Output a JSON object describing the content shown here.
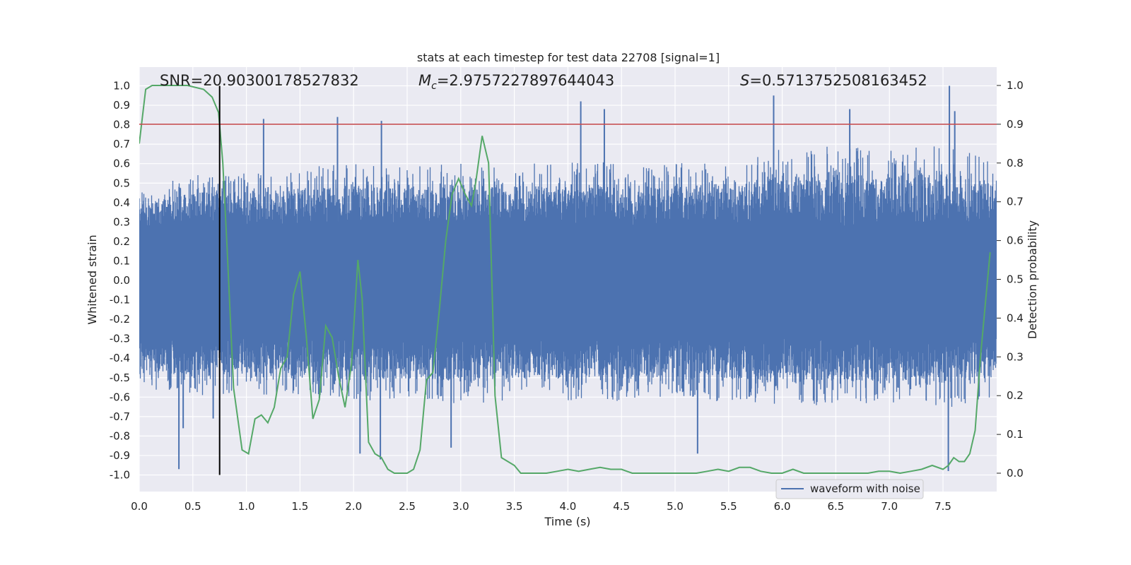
{
  "chart_data": {
    "type": "line",
    "title": "stats at each timestep for test data 22708 [signal=1]",
    "xlabel": "Time (s)",
    "ylabel": "Whitened strain",
    "ylabel_right": "Detection probability",
    "xlim": [
      0.0,
      8.0
    ],
    "ylim": [
      -1.1,
      1.1
    ],
    "ylim_right": [
      -0.05,
      1.05
    ],
    "x_ticks": [
      "0.0",
      "0.5",
      "1.0",
      "1.5",
      "2.0",
      "2.5",
      "3.0",
      "3.5",
      "4.0",
      "4.5",
      "5.0",
      "5.5",
      "6.0",
      "6.5",
      "7.0",
      "7.5"
    ],
    "y_ticks": [
      "1.0",
      "0.9",
      "0.8",
      "0.7",
      "0.6",
      "0.5",
      "0.4",
      "0.3",
      "0.2",
      "0.1",
      "0.0",
      "-0.1",
      "-0.2",
      "-0.3",
      "-0.4",
      "-0.5",
      "-0.6",
      "-0.7",
      "-0.8",
      "-0.9",
      "-1.0"
    ],
    "y_ticks_right": [
      "1.0",
      "0.9",
      "0.8",
      "0.7",
      "0.6",
      "0.5",
      "0.4",
      "0.3",
      "0.2",
      "0.1",
      "0.0"
    ],
    "grid": true,
    "legend_position": "bottom-right",
    "annotations": {
      "snr": "SNR=20.90300178527832",
      "mc_prefix": "M",
      "mc_sub": "c",
      "mc_value": "=2.9757227897644043",
      "s_prefix": "S",
      "s_value": "=0.5713752508163452"
    },
    "threshold_line": {
      "y_right": 0.9,
      "color": "#c44e52"
    },
    "marker_line": {
      "x": 0.75,
      "color": "#000000"
    },
    "series": [
      {
        "name": "waveform with noise",
        "axis": "left",
        "color": "#4c72b0",
        "envelope": {
          "x": [
            0.0,
            0.5,
            1.0,
            1.5,
            2.0,
            2.5,
            3.0,
            3.5,
            4.0,
            4.5,
            5.0,
            5.5,
            6.0,
            6.5,
            7.0,
            7.5,
            8.0
          ],
          "upper": [
            0.45,
            0.55,
            0.55,
            0.58,
            0.6,
            0.58,
            0.62,
            0.6,
            0.62,
            0.6,
            0.6,
            0.62,
            0.68,
            0.7,
            0.68,
            0.72,
            0.6
          ],
          "lower": [
            -0.55,
            -0.6,
            -0.58,
            -0.6,
            -0.62,
            -0.62,
            -0.64,
            -0.62,
            -0.62,
            -0.62,
            -0.6,
            -0.64,
            -0.66,
            -0.64,
            -0.64,
            -0.66,
            -0.6
          ]
        },
        "peaks": [
          {
            "x": 0.37,
            "y": -0.97
          },
          {
            "x": 0.41,
            "y": -0.76
          },
          {
            "x": 0.69,
            "y": -0.71
          },
          {
            "x": 1.16,
            "y": 0.83
          },
          {
            "x": 1.85,
            "y": 0.84
          },
          {
            "x": 2.06,
            "y": -0.89
          },
          {
            "x": 2.26,
            "y": 0.82
          },
          {
            "x": 2.25,
            "y": -0.92
          },
          {
            "x": 2.91,
            "y": -0.86
          },
          {
            "x": 4.12,
            "y": 0.92
          },
          {
            "x": 4.34,
            "y": 0.88
          },
          {
            "x": 5.21,
            "y": -0.89
          },
          {
            "x": 5.92,
            "y": 0.95
          },
          {
            "x": 6.63,
            "y": 0.88
          },
          {
            "x": 7.56,
            "y": 1.0
          },
          {
            "x": 7.55,
            "y": -0.98
          },
          {
            "x": 7.61,
            "y": 0.87
          }
        ]
      },
      {
        "name": "",
        "axis": "right",
        "color": "#55a868",
        "x": [
          0.0,
          0.06,
          0.12,
          0.18,
          0.3,
          0.45,
          0.6,
          0.68,
          0.74,
          0.78,
          0.82,
          0.88,
          0.96,
          1.02,
          1.08,
          1.14,
          1.2,
          1.26,
          1.32,
          1.38,
          1.44,
          1.5,
          1.56,
          1.62,
          1.68,
          1.74,
          1.8,
          1.86,
          1.92,
          1.98,
          2.04,
          2.08,
          2.14,
          2.2,
          2.26,
          2.32,
          2.38,
          2.44,
          2.5,
          2.56,
          2.62,
          2.68,
          2.74,
          2.8,
          2.86,
          2.92,
          2.98,
          3.04,
          3.1,
          3.14,
          3.2,
          3.26,
          3.32,
          3.38,
          3.44,
          3.5,
          3.56,
          3.62,
          3.7,
          3.8,
          3.9,
          4.0,
          4.1,
          4.2,
          4.3,
          4.4,
          4.5,
          4.6,
          4.7,
          4.8,
          4.9,
          5.0,
          5.1,
          5.2,
          5.3,
          5.4,
          5.5,
          5.6,
          5.7,
          5.8,
          5.9,
          6.0,
          6.1,
          6.2,
          6.3,
          6.4,
          6.5,
          6.6,
          6.7,
          6.8,
          6.9,
          7.0,
          7.1,
          7.2,
          7.3,
          7.4,
          7.5,
          7.55,
          7.6,
          7.65,
          7.7,
          7.75,
          7.8,
          7.85,
          7.9,
          7.94
        ],
        "y": [
          0.85,
          0.99,
          1.0,
          1.0,
          1.0,
          1.0,
          0.99,
          0.97,
          0.93,
          0.8,
          0.58,
          0.22,
          0.06,
          0.05,
          0.14,
          0.15,
          0.13,
          0.17,
          0.27,
          0.3,
          0.46,
          0.52,
          0.35,
          0.14,
          0.19,
          0.38,
          0.35,
          0.25,
          0.17,
          0.28,
          0.55,
          0.45,
          0.08,
          0.05,
          0.04,
          0.01,
          0.0,
          0.0,
          0.0,
          0.01,
          0.06,
          0.24,
          0.26,
          0.42,
          0.6,
          0.72,
          0.76,
          0.72,
          0.69,
          0.75,
          0.87,
          0.8,
          0.2,
          0.04,
          0.03,
          0.02,
          0.0,
          0.0,
          0.0,
          0.0,
          0.005,
          0.01,
          0.005,
          0.01,
          0.015,
          0.01,
          0.01,
          0.0,
          0.0,
          0.0,
          0.0,
          0.0,
          0.0,
          0.0,
          0.005,
          0.01,
          0.005,
          0.015,
          0.015,
          0.005,
          0.0,
          0.0,
          0.01,
          0.0,
          0.0,
          0.0,
          0.0,
          0.0,
          0.0,
          0.0,
          0.005,
          0.005,
          0.0,
          0.005,
          0.01,
          0.02,
          0.01,
          0.02,
          0.04,
          0.03,
          0.03,
          0.05,
          0.11,
          0.3,
          0.45,
          0.57
        ]
      }
    ]
  }
}
